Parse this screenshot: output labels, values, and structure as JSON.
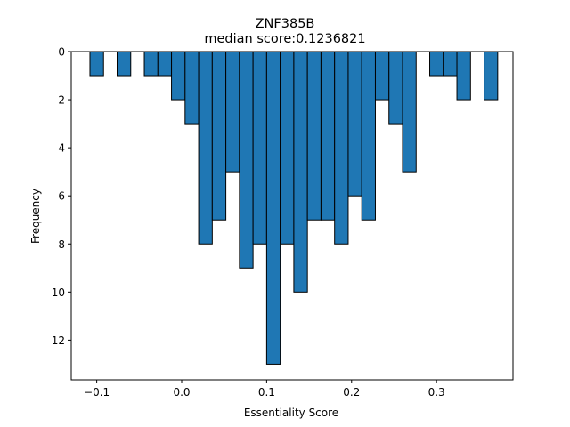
{
  "chart_data": {
    "type": "bar",
    "title": "ZNF385B",
    "subtitle": "median score:0.1236821",
    "xlabel": "Essentiality Score",
    "ylabel": "Frequency",
    "y_inverted": true,
    "xlim": [
      -0.13,
      0.39
    ],
    "ylim": [
      0,
      13.65
    ],
    "x_ticks": [
      -0.1,
      0.0,
      0.1,
      0.2,
      0.3
    ],
    "x_tick_labels": [
      "−0.1",
      "0.0",
      "0.1",
      "0.2",
      "0.3"
    ],
    "y_ticks": [
      0,
      2,
      4,
      6,
      8,
      10,
      12
    ],
    "y_tick_labels": [
      "0",
      "2",
      "4",
      "6",
      "8",
      "10",
      "12"
    ],
    "bar_color": "#1f77b4",
    "edge_color": "#000000",
    "bin_width": 0.016,
    "bars": [
      {
        "x": -0.1,
        "value": 1
      },
      {
        "x": -0.068,
        "value": 1
      },
      {
        "x": -0.036,
        "value": 1
      },
      {
        "x": -0.02,
        "value": 1
      },
      {
        "x": -0.004,
        "value": 2
      },
      {
        "x": 0.012,
        "value": 3
      },
      {
        "x": 0.028,
        "value": 8
      },
      {
        "x": 0.044,
        "value": 7
      },
      {
        "x": 0.06,
        "value": 5
      },
      {
        "x": 0.076,
        "value": 9
      },
      {
        "x": 0.092,
        "value": 8
      },
      {
        "x": 0.108,
        "value": 13
      },
      {
        "x": 0.124,
        "value": 8
      },
      {
        "x": 0.14,
        "value": 10
      },
      {
        "x": 0.156,
        "value": 7
      },
      {
        "x": 0.172,
        "value": 7
      },
      {
        "x": 0.188,
        "value": 8
      },
      {
        "x": 0.204,
        "value": 6
      },
      {
        "x": 0.22,
        "value": 7
      },
      {
        "x": 0.236,
        "value": 2
      },
      {
        "x": 0.252,
        "value": 3
      },
      {
        "x": 0.268,
        "value": 5
      },
      {
        "x": 0.3,
        "value": 1
      },
      {
        "x": 0.316,
        "value": 1
      },
      {
        "x": 0.332,
        "value": 2
      },
      {
        "x": 0.364,
        "value": 2
      }
    ]
  }
}
